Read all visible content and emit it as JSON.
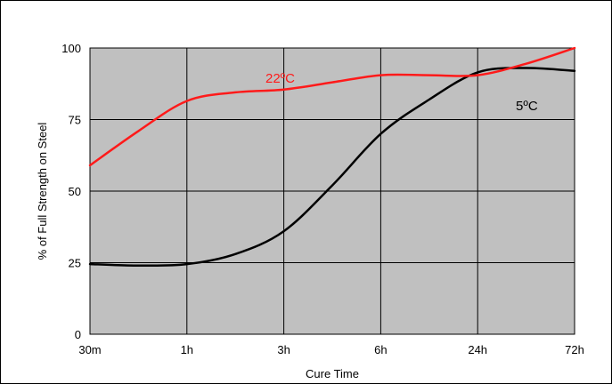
{
  "chart_data": {
    "type": "line",
    "title": "",
    "xlabel": "Cure Time",
    "ylabel": "% of Full Strength on Steel",
    "categories": [
      "30m",
      "1h",
      "3h",
      "6h",
      "24h",
      "72h"
    ],
    "ylim": [
      0,
      100
    ],
    "yticks": [
      "0",
      "25",
      "50",
      "75",
      "100"
    ],
    "grid": true,
    "plot_background": "#c0c0c0",
    "series": [
      {
        "name": "22ºC",
        "color": "#ff1a1a",
        "x": [
          0,
          0.5,
          1,
          1.5,
          2,
          2.5,
          3,
          3.5,
          4,
          4.5,
          5
        ],
        "values": [
          59,
          71,
          81.5,
          84.5,
          85.5,
          88,
          90.5,
          90.5,
          90.5,
          94.5,
          100
        ]
      },
      {
        "name": "5ºC",
        "color": "#000000",
        "x": [
          0,
          0.5,
          1,
          1.5,
          2,
          2.5,
          3,
          3.5,
          4,
          4.5,
          5
        ],
        "values": [
          24.5,
          24,
          24.5,
          28,
          36,
          52,
          70,
          82,
          91.5,
          93,
          92
        ]
      }
    ]
  }
}
